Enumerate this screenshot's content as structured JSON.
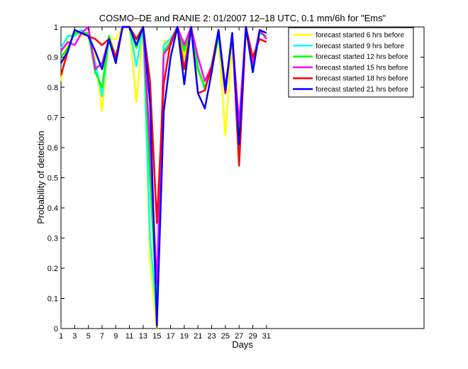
{
  "chart_data": {
    "type": "line",
    "title": "COSMO–DE and RANIE 2: 01/2007 12–18 UTC, 0.1 mm/6h for \"Ems\"",
    "xlabel": "Days",
    "ylabel": "Probability of detection",
    "xlim": [
      1,
      54
    ],
    "ylim": [
      0,
      1
    ],
    "xticks": [
      1,
      3,
      5,
      7,
      9,
      11,
      13,
      15,
      17,
      19,
      21,
      23,
      25,
      27,
      29,
      31
    ],
    "yticks": [
      0,
      0.1,
      0.2,
      0.3,
      0.4,
      0.5,
      0.6,
      0.7,
      0.8,
      0.9,
      1
    ],
    "ytick_labels": [
      "0",
      "0.1",
      "0.2",
      "0.3",
      "0.4",
      "0.5",
      "0.6",
      "0.7",
      "0.8",
      "0.9",
      "1"
    ],
    "legend_position": "top-right",
    "x": [
      1,
      2,
      3,
      4,
      5,
      6,
      7,
      8,
      9,
      10,
      11,
      12,
      13,
      14,
      15,
      16,
      17,
      18,
      19,
      20,
      21,
      22,
      23,
      24,
      25,
      26,
      27,
      28,
      29,
      30,
      31
    ],
    "series": [
      {
        "name": "forecast started 6 hrs before",
        "color": "#ffff00",
        "values": [
          0.82,
          0.97,
          0.98,
          0.97,
          0.98,
          0.9,
          0.72,
          0.96,
          0.96,
          1.0,
          1.0,
          0.75,
          1.0,
          0.22,
          0.0,
          0.95,
          0.96,
          1.0,
          0.9,
          1.0,
          0.85,
          0.8,
          0.85,
          0.97,
          0.64,
          0.95,
          0.6,
          1.0,
          0.86,
          0.99,
          0.98
        ]
      },
      {
        "name": "forecast started 9 hrs before",
        "color": "#00ffff",
        "values": [
          0.93,
          0.97,
          0.97,
          0.99,
          0.97,
          0.88,
          0.77,
          0.96,
          0.89,
          1.0,
          1.0,
          0.87,
          1.0,
          0.3,
          0.04,
          0.94,
          0.96,
          1.0,
          0.93,
          1.0,
          0.87,
          0.79,
          0.88,
          0.97,
          0.78,
          0.97,
          0.63,
          1.0,
          0.87,
          0.98,
          0.97
        ]
      },
      {
        "name": "forecast started 12 hrs before",
        "color": "#00ff00",
        "values": [
          0.9,
          0.93,
          0.98,
          0.98,
          0.98,
          0.85,
          0.8,
          0.97,
          0.9,
          1.0,
          1.0,
          0.93,
          1.0,
          0.5,
          0.07,
          0.92,
          0.95,
          1.0,
          0.92,
          1.0,
          0.86,
          0.8,
          0.86,
          0.97,
          0.8,
          0.96,
          0.65,
          1.0,
          0.86,
          0.98,
          0.97
        ]
      },
      {
        "name": "forecast started 15 hrs before",
        "color": "#ff00ff",
        "values": [
          0.92,
          0.95,
          0.94,
          0.98,
          1.0,
          0.86,
          0.88,
          0.96,
          0.9,
          1.0,
          1.0,
          0.96,
          1.0,
          0.6,
          0.15,
          0.91,
          0.94,
          1.0,
          0.94,
          1.0,
          0.9,
          0.82,
          0.87,
          0.99,
          0.8,
          0.97,
          0.68,
          1.0,
          0.88,
          0.99,
          0.96
        ]
      },
      {
        "name": "forecast started 18 hrs before",
        "color": "#ff0000",
        "values": [
          0.84,
          0.92,
          0.99,
          0.98,
          0.97,
          0.96,
          0.94,
          0.96,
          0.9,
          1.0,
          1.0,
          0.96,
          1.0,
          0.82,
          0.35,
          0.81,
          0.95,
          1.0,
          0.86,
          1.0,
          0.78,
          0.79,
          0.87,
          0.99,
          0.78,
          0.98,
          0.54,
          1.0,
          0.9,
          0.96,
          0.95
        ]
      },
      {
        "name": "forecast started 21 hrs before",
        "color": "#0000ff",
        "values": [
          0.88,
          0.92,
          0.99,
          0.98,
          0.97,
          0.92,
          0.86,
          0.96,
          0.88,
          1.0,
          1.0,
          0.94,
          1.0,
          0.75,
          0.01,
          0.72,
          0.9,
          1.0,
          0.81,
          1.0,
          0.78,
          0.73,
          0.85,
          0.99,
          0.79,
          0.98,
          0.61,
          1.0,
          0.85,
          0.99,
          0.98
        ]
      }
    ]
  }
}
